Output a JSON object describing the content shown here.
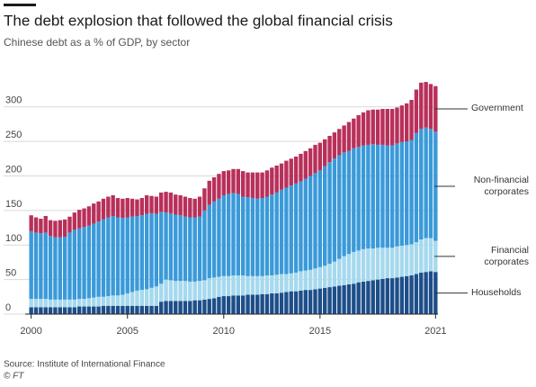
{
  "chart_data": {
    "type": "bar",
    "stacked": true,
    "title": "The debt explosion that followed the global financial crisis",
    "subtitle": "Chinese debt as a % of GDP, by sector",
    "source": "Source: Institute of International Finance",
    "credit": "© FT",
    "categories": [
      "2000",
      null,
      null,
      null,
      null,
      null,
      null,
      null,
      null,
      null,
      null,
      null,
      null,
      null,
      null,
      null,
      null,
      null,
      null,
      null,
      "2005",
      null,
      null,
      null,
      null,
      null,
      null,
      null,
      null,
      null,
      null,
      null,
      null,
      null,
      null,
      null,
      null,
      null,
      null,
      null,
      "2010",
      null,
      null,
      null,
      null,
      null,
      null,
      null,
      null,
      null,
      null,
      null,
      null,
      null,
      null,
      null,
      null,
      null,
      null,
      null,
      "2015",
      null,
      null,
      null,
      null,
      null,
      null,
      null,
      null,
      null,
      null,
      null,
      null,
      null,
      null,
      null,
      null,
      null,
      null,
      null,
      null,
      null,
      null,
      null,
      "2021"
    ],
    "series": [
      {
        "name": "Households",
        "color": "#1d4e89",
        "values": [
          10,
          10,
          10,
          10,
          10,
          10,
          10,
          10,
          10,
          10,
          11,
          11,
          11,
          11,
          11,
          12,
          12,
          12,
          12,
          12,
          12,
          12,
          12,
          12,
          12,
          12,
          12,
          18,
          19,
          19,
          19,
          19,
          19,
          19,
          20,
          20,
          21,
          22,
          23,
          25,
          26,
          26,
          27,
          27,
          27,
          28,
          28,
          28,
          29,
          29,
          30,
          30,
          31,
          32,
          33,
          33,
          34,
          35,
          35,
          36,
          37,
          38,
          39,
          40,
          41,
          42,
          43,
          44,
          46,
          47,
          48,
          49,
          50,
          51,
          52,
          52,
          53,
          54,
          55,
          56,
          58,
          60,
          61,
          62,
          61
        ]
      },
      {
        "name": "Financial corporates",
        "color": "#a6d9ee",
        "values": [
          12,
          12,
          12,
          12,
          11,
          11,
          11,
          11,
          11,
          11,
          11,
          11,
          12,
          13,
          14,
          13,
          14,
          15,
          15,
          16,
          18,
          20,
          22,
          23,
          24,
          26,
          28,
          26,
          31,
          30,
          29,
          29,
          29,
          28,
          27,
          28,
          28,
          30,
          30,
          29,
          29,
          29,
          29,
          29,
          29,
          27,
          27,
          27,
          26,
          27,
          26,
          27,
          27,
          26,
          26,
          27,
          28,
          28,
          29,
          30,
          31,
          32,
          34,
          36,
          39,
          42,
          44,
          46,
          46,
          47,
          47,
          46,
          46,
          45,
          44,
          44,
          45,
          45,
          45,
          45,
          46,
          48,
          49,
          48,
          45
        ]
      },
      {
        "name": "Non-financial corporates",
        "color": "#3a9ad9",
        "values": [
          98,
          96,
          95,
          96,
          92,
          90,
          90,
          91,
          97,
          101,
          102,
          104,
          105,
          107,
          109,
          112,
          114,
          115,
          113,
          111,
          110,
          109,
          108,
          108,
          109,
          108,
          105,
          104,
          97,
          97,
          96,
          95,
          93,
          93,
          93,
          93,
          101,
          106,
          110,
          113,
          117,
          119,
          119,
          118,
          114,
          114,
          113,
          112,
          113,
          114,
          117,
          119,
          122,
          125,
          127,
          129,
          130,
          133,
          136,
          138,
          140,
          144,
          147,
          149,
          150,
          150,
          149,
          150,
          150,
          150,
          150,
          151,
          149,
          149,
          148,
          148,
          149,
          150,
          150,
          151,
          158,
          160,
          160,
          158,
          158
        ]
      },
      {
        "name": "Government",
        "color": "#b8305a",
        "values": [
          23,
          22,
          21,
          24,
          23,
          24,
          25,
          25,
          23,
          25,
          27,
          27,
          28,
          29,
          29,
          30,
          30,
          30,
          28,
          28,
          28,
          26,
          24,
          25,
          27,
          25,
          25,
          28,
          30,
          30,
          29,
          29,
          29,
          28,
          27,
          29,
          32,
          35,
          35,
          36,
          35,
          34,
          35,
          36,
          37,
          36,
          37,
          38,
          37,
          38,
          39,
          39,
          38,
          39,
          39,
          39,
          40,
          40,
          40,
          41,
          40,
          39,
          38,
          38,
          38,
          39,
          42,
          43,
          46,
          48,
          50,
          50,
          51,
          52,
          53,
          53,
          52,
          53,
          55,
          58,
          63,
          67,
          66,
          65,
          66
        ]
      }
    ],
    "ylim": [
      0,
      340
    ],
    "yticks": [
      0,
      50,
      100,
      150,
      200,
      250,
      300
    ],
    "grid": true
  }
}
